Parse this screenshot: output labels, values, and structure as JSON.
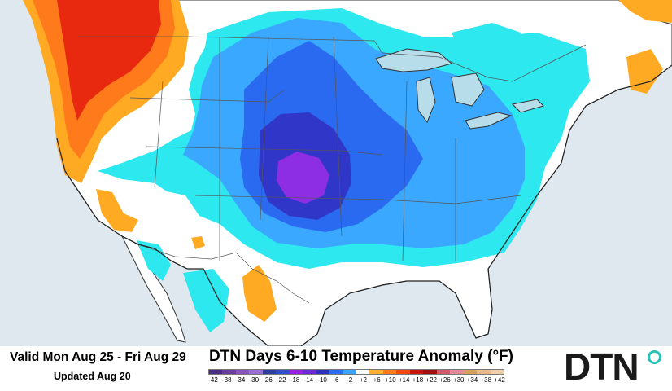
{
  "footer": {
    "valid_range": "Valid Mon Aug 25 - Fri Aug 29",
    "updated": "Updated Aug 20",
    "title": "DTN Days 6-10 Temperature Anomaly (°F)"
  },
  "legend": {
    "labels": [
      "-42",
      "-38",
      "-34",
      "-30",
      "-26",
      "-22",
      "-18",
      "-14",
      "-10",
      "-6",
      "-2",
      "+2",
      "+6",
      "+10",
      "+14",
      "+18",
      "+22",
      "+26",
      "+30",
      "+34",
      "+38",
      "+42"
    ],
    "colors": [
      "#4a2c82",
      "#6a3d9a",
      "#8a54b8",
      "#9b6fd0",
      "#2a3f9e",
      "#3050c8",
      "#9a1fe0",
      "#6a2ad8",
      "#2b34b8",
      "#2a6df0",
      "#3aa6ff",
      "#ffffff",
      "#ffb02e",
      "#ff7a1a",
      "#f04a12",
      "#c8160e",
      "#a0100c",
      "#d05a6a",
      "#e08a9a",
      "#d4a060",
      "#e8b888",
      "#f0d0a8"
    ]
  },
  "logo": {
    "text": "DTN"
  },
  "colors": {
    "light_cyan": "#2ee8f0",
    "light_blue": "#3aa8ff",
    "blue": "#2a6af0",
    "dark_blue": "#3036c8",
    "purple": "#8e2ee4",
    "orange": "#ffaa22",
    "dark_orange": "#ff7a1a",
    "red": "#e8290f",
    "lake": "#b7dcea"
  }
}
